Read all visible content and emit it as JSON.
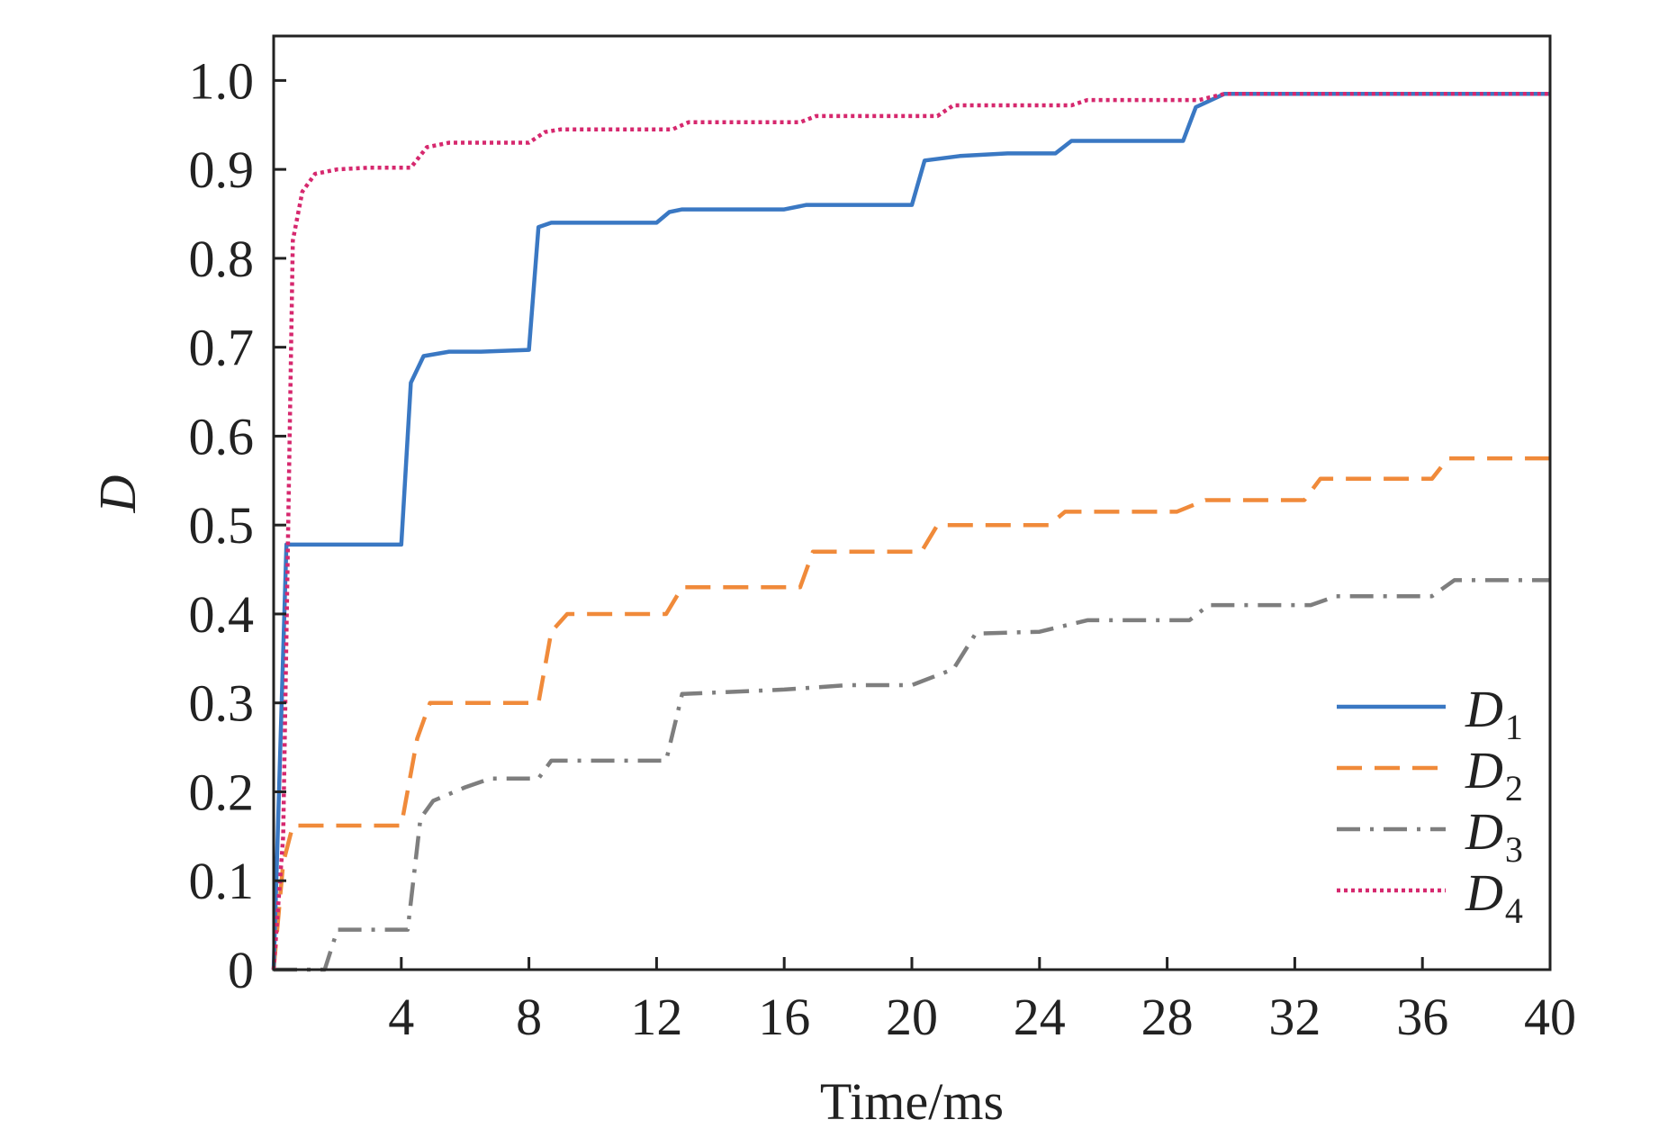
{
  "chart_data": {
    "type": "line",
    "xlabel": "Time/ms",
    "ylabel": "D",
    "xlim": [
      0,
      40
    ],
    "ylim": [
      0,
      1.05
    ],
    "x_ticks": [
      4,
      8,
      12,
      16,
      20,
      24,
      28,
      32,
      36,
      40
    ],
    "x_tick_labels": [
      "4",
      "8",
      "12",
      "16",
      "20",
      "24",
      "28",
      "32",
      "36",
      "40"
    ],
    "y_ticks": [
      0,
      0.1,
      0.2,
      0.3,
      0.4,
      0.5,
      0.6,
      0.7,
      0.8,
      0.9,
      1.0
    ],
    "y_tick_labels": [
      "0",
      "0.1",
      "0.2",
      "0.3",
      "0.4",
      "0.5",
      "0.6",
      "0.7",
      "0.8",
      "0.9",
      "1.0"
    ],
    "grid": false,
    "legend_position": "bottom-right",
    "series": [
      {
        "name": "D",
        "subscript": "1",
        "color": "#3a78c3",
        "dash": "solid",
        "x": [
          0,
          0.4,
          4.0,
          4.3,
          4.7,
          5.5,
          6.5,
          8.0,
          8.3,
          8.7,
          12.0,
          12.4,
          12.8,
          16.0,
          16.7,
          20.0,
          20.4,
          21.5,
          23.0,
          24.5,
          25.0,
          28.5,
          28.9,
          29.8,
          40
        ],
        "y": [
          0,
          0.478,
          0.478,
          0.66,
          0.69,
          0.695,
          0.695,
          0.697,
          0.835,
          0.84,
          0.84,
          0.852,
          0.855,
          0.855,
          0.86,
          0.86,
          0.91,
          0.915,
          0.918,
          0.918,
          0.932,
          0.932,
          0.97,
          0.985,
          0.985
        ]
      },
      {
        "name": "D",
        "subscript": "2",
        "color": "#f08a3a",
        "dash": "dashed",
        "x": [
          0,
          0.3,
          0.6,
          4.0,
          4.5,
          4.9,
          8.3,
          8.7,
          9.2,
          12.3,
          12.8,
          16.5,
          16.9,
          20.3,
          20.8,
          24.3,
          24.8,
          28.3,
          29.2,
          32.3,
          32.8,
          36.3,
          36.8,
          40
        ],
        "y": [
          0,
          0.12,
          0.162,
          0.162,
          0.26,
          0.3,
          0.3,
          0.38,
          0.4,
          0.4,
          0.43,
          0.43,
          0.47,
          0.47,
          0.5,
          0.5,
          0.515,
          0.515,
          0.528,
          0.528,
          0.552,
          0.552,
          0.575,
          0.575
        ]
      },
      {
        "name": "D",
        "subscript": "3",
        "color": "#7e7e7e",
        "dash": "dashdot",
        "x": [
          0,
          1.6,
          2.0,
          4.2,
          4.6,
          5.0,
          6.0,
          6.8,
          8.3,
          8.7,
          12.3,
          12.8,
          16.0,
          18.0,
          20.0,
          21.3,
          22.0,
          24.0,
          25.5,
          28.7,
          29.3,
          32.5,
          33.3,
          36.3,
          37.0,
          40
        ],
        "y": [
          0,
          0,
          0.045,
          0.045,
          0.17,
          0.19,
          0.205,
          0.215,
          0.215,
          0.235,
          0.235,
          0.31,
          0.315,
          0.32,
          0.32,
          0.338,
          0.378,
          0.38,
          0.393,
          0.393,
          0.41,
          0.41,
          0.42,
          0.42,
          0.438,
          0.438
        ]
      },
      {
        "name": "D",
        "subscript": "4",
        "color": "#d6286e",
        "dash": "dotted",
        "x": [
          0,
          0.3,
          0.6,
          0.9,
          1.3,
          2.0,
          3.0,
          4.3,
          4.8,
          5.5,
          8.0,
          8.5,
          9.0,
          12.5,
          13.0,
          16.5,
          17.0,
          20.8,
          21.3,
          25.0,
          25.5,
          29.0,
          29.8,
          40
        ],
        "y": [
          0,
          0.15,
          0.82,
          0.875,
          0.895,
          0.9,
          0.902,
          0.902,
          0.925,
          0.93,
          0.93,
          0.942,
          0.945,
          0.945,
          0.953,
          0.953,
          0.96,
          0.96,
          0.972,
          0.972,
          0.978,
          0.978,
          0.985,
          0.985
        ]
      }
    ]
  }
}
